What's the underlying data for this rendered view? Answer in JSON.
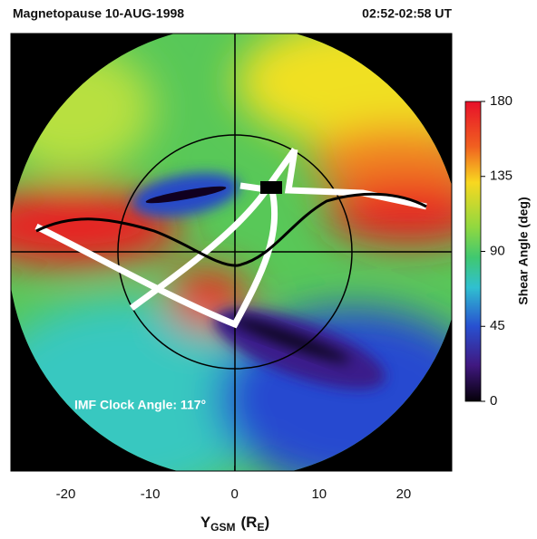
{
  "chart_data": {
    "type": "heatmap",
    "title": "Magnetopause 10-AUG-1998",
    "subtitle": "02:52-02:58 UT",
    "annotation": "IMF Clock Angle: 117°",
    "x_label": [
      "Y",
      "GSM",
      "(R",
      "E",
      ")"
    ],
    "xlim": [
      -26.5,
      25.7
    ],
    "ylim": [
      -26,
      26
    ],
    "xticks": [
      -20,
      -10,
      0,
      10,
      20
    ],
    "colorbar": {
      "label": "Shear Angle (deg)",
      "lim": [
        0,
        180
      ],
      "ticks": [
        0,
        45,
        90,
        135,
        180
      ]
    }
  }
}
